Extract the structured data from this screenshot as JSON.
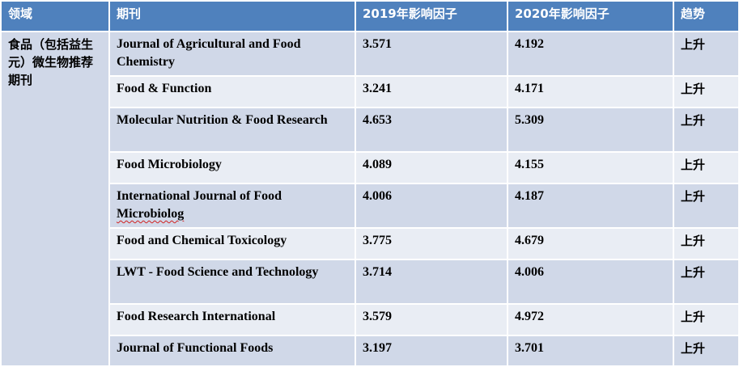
{
  "header": {
    "field": "领域",
    "journal": "期刊",
    "if2019": "2019年影响因子",
    "if2020": "2020年影响因子",
    "trend": "趋势"
  },
  "field_label": "食品（包括益生元）微生物推荐期刊",
  "rows": [
    {
      "journal": "Journal of Agricultural and Food Chemistry",
      "if2019": "3.571",
      "if2020": "4.192",
      "trend": "上升"
    },
    {
      "journal": "Food & Function",
      "if2019": "3.241",
      "if2020": "4.171",
      "trend": "上升"
    },
    {
      "journal": "Molecular Nutrition & Food Research",
      "if2019": "4.653",
      "if2020": "5.309",
      "trend": "上升"
    },
    {
      "journal": "Food Microbiology",
      "if2019": "4.089",
      "if2020": "4.155",
      "trend": "上升"
    },
    {
      "journal": "International Journal of Food",
      "journal_tail": "Microbiolog",
      "if2019": "4.006",
      "if2020": "4.187",
      "trend": "上升"
    },
    {
      "journal": "Food and Chemical Toxicology",
      "if2019": "3.775",
      "if2020": "4.679",
      "trend": "上升"
    },
    {
      "journal": "LWT - Food Science and Technology",
      "if2019": "3.714",
      "if2020": "4.006",
      "trend": "上升"
    },
    {
      "journal": "Food Research International",
      "if2019": "3.579",
      "if2020": "4.972",
      "trend": "上升"
    },
    {
      "journal": "Journal of Functional Foods",
      "if2019": "3.197",
      "if2020": "3.701",
      "trend": "上升"
    }
  ],
  "colors": {
    "header_bg": "#4f81bd",
    "row_dark": "#d0d8e8",
    "row_light": "#e9edf4"
  }
}
